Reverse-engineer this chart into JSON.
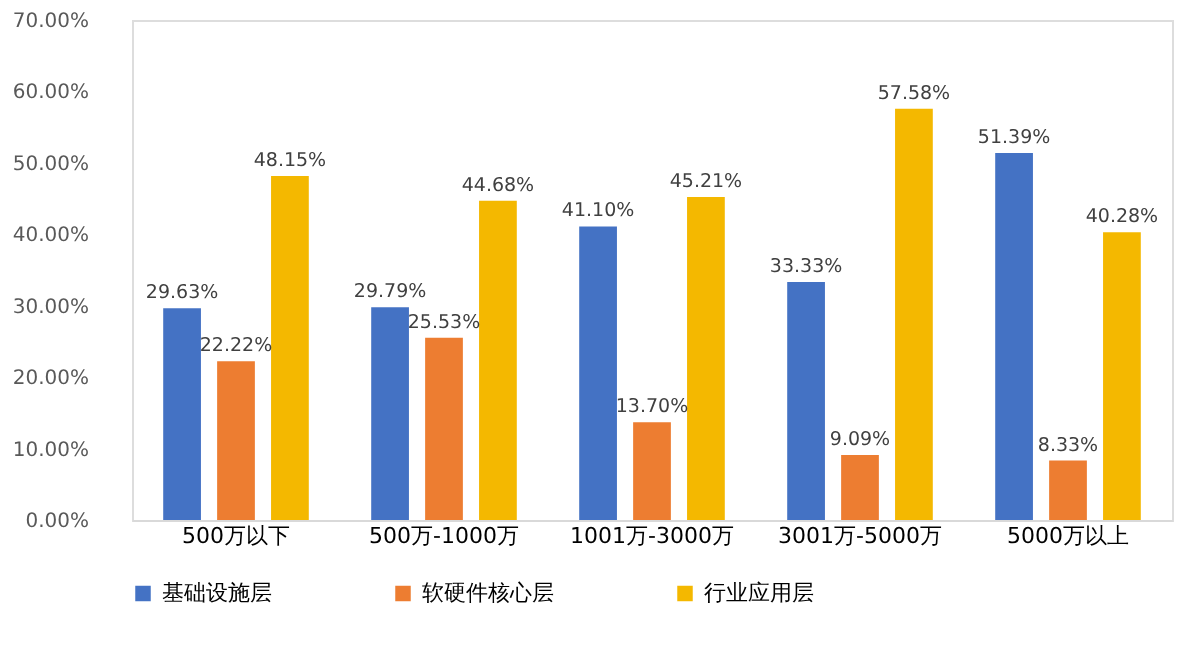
{
  "chart_data": {
    "type": "bar",
    "categories": [
      "500万以下",
      "500万-1000万",
      "1001万-3000万",
      "3001万-5000万",
      "5000万以上"
    ],
    "series": [
      {
        "name": "基础设施层",
        "color": "#4472c4",
        "values": [
          29.63,
          29.79,
          41.1,
          33.33,
          51.39
        ],
        "value_labels": [
          "29.63%",
          "29.79%",
          "41.10%",
          "33.33%",
          "51.39%"
        ]
      },
      {
        "name": "软硬件核心层",
        "color": "#ed7d31",
        "values": [
          22.22,
          25.53,
          13.7,
          9.09,
          8.33
        ],
        "value_labels": [
          "22.22%",
          "25.53%",
          "13.70%",
          "9.09%",
          "8.33%"
        ]
      },
      {
        "name": "行业应用层",
        "color": "#f4b800",
        "values": [
          48.15,
          44.68,
          45.21,
          57.58,
          40.28
        ],
        "value_labels": [
          "48.15%",
          "44.68%",
          "45.21%",
          "57.58%",
          "40.28%"
        ]
      }
    ],
    "ylim": [
      0,
      70
    ],
    "yticks": [
      {
        "value": 0,
        "label": "0.00%"
      },
      {
        "value": 10,
        "label": "10.00%"
      },
      {
        "value": 20,
        "label": "20.00%"
      },
      {
        "value": 30,
        "label": "30.00%"
      },
      {
        "value": 40,
        "label": "40.00%"
      },
      {
        "value": 50,
        "label": "50.00%"
      },
      {
        "value": 60,
        "label": "60.00%"
      },
      {
        "value": 70,
        "label": "70.00%"
      }
    ],
    "grid": false,
    "legend": "bottom"
  }
}
